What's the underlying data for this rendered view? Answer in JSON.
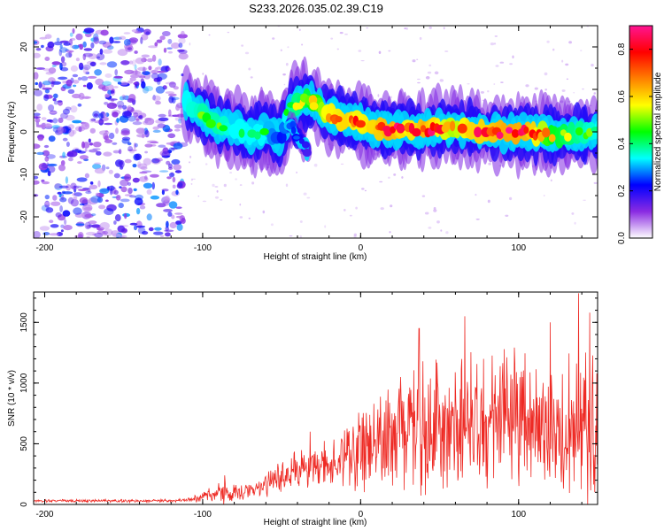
{
  "title": "S233.2026.035.02.39.C19",
  "chart_data": [
    {
      "type": "heatmap",
      "name": "spectrogram",
      "xlabel": "Height of straight line (km)",
      "ylabel": "Frequency (Hz)",
      "xlim": [
        -207,
        150
      ],
      "ylim": [
        -25,
        25
      ],
      "xticks": [
        -200,
        -100,
        0,
        100
      ],
      "yticks": [
        -20,
        -10,
        0,
        10,
        20
      ],
      "colorbar": {
        "label": "Normalized spectral amplitude",
        "range": [
          0.0,
          0.9
        ],
        "ticks": [
          "0.0",
          "0.2",
          "0.4",
          "0.6",
          "0.8"
        ],
        "colormap": [
          "#ffffff",
          "#8a2be2",
          "#0000ff",
          "#00ffff",
          "#00ff00",
          "#ffff00",
          "#ff8000",
          "#ff0000",
          "#ff1493"
        ]
      },
      "noise_region": {
        "x": [
          -207,
          -112
        ],
        "y": [
          -25,
          24
        ],
        "amplitude_range": [
          0.05,
          0.3
        ]
      },
      "signal_ridge": [
        {
          "x": -110,
          "y": 6.5,
          "amp": 0.45
        },
        {
          "x": -100,
          "y": 4.0,
          "amp": 0.5
        },
        {
          "x": -90,
          "y": 1.5,
          "amp": 0.5
        },
        {
          "x": -80,
          "y": 1.0,
          "amp": 0.45
        },
        {
          "x": -70,
          "y": -1.0,
          "amp": 0.45
        },
        {
          "x": -60,
          "y": 0.5,
          "amp": 0.45
        },
        {
          "x": -50,
          "y": -1.5,
          "amp": 0.3
        },
        {
          "x": -45,
          "y": 5.5,
          "amp": 0.5
        },
        {
          "x": -35,
          "y": 7.5,
          "amp": 0.55
        },
        {
          "x": -30,
          "y": 7.0,
          "amp": 0.6
        },
        {
          "x": -20,
          "y": 4.0,
          "amp": 0.75
        },
        {
          "x": -10,
          "y": 2.5,
          "amp": 0.8
        },
        {
          "x": 0,
          "y": 2.0,
          "amp": 0.75
        },
        {
          "x": 10,
          "y": 1.0,
          "amp": 0.8
        },
        {
          "x": 20,
          "y": 0.5,
          "amp": 0.85
        },
        {
          "x": 30,
          "y": 0.8,
          "amp": 0.75
        },
        {
          "x": 40,
          "y": 0.5,
          "amp": 0.85
        },
        {
          "x": 50,
          "y": 0.7,
          "amp": 0.75
        },
        {
          "x": 60,
          "y": 1.0,
          "amp": 0.7
        },
        {
          "x": 70,
          "y": 0.5,
          "amp": 0.8
        },
        {
          "x": 80,
          "y": 0.0,
          "amp": 0.8
        },
        {
          "x": 90,
          "y": -0.2,
          "amp": 0.85
        },
        {
          "x": 100,
          "y": 0.0,
          "amp": 0.85
        },
        {
          "x": 110,
          "y": -0.3,
          "amp": 0.8
        },
        {
          "x": 120,
          "y": -0.8,
          "amp": 0.6
        },
        {
          "x": 130,
          "y": -0.5,
          "amp": 0.55
        },
        {
          "x": 140,
          "y": -0.5,
          "amp": 0.5
        },
        {
          "x": 150,
          "y": 0.0,
          "amp": 0.45
        }
      ],
      "secondary_branch": [
        {
          "x": -45,
          "y": 2.0,
          "amp": 0.35
        },
        {
          "x": -40,
          "y": -1.0,
          "amp": 0.3
        },
        {
          "x": -35,
          "y": -3.5,
          "amp": 0.25
        },
        {
          "x": -33,
          "y": -5.5,
          "amp": 0.2
        }
      ]
    },
    {
      "type": "line",
      "name": "snr",
      "xlabel": "Height of straight line (km)",
      "ylabel": "SNR (10 * v/v)",
      "xlim": [
        -207,
        150
      ],
      "ylim": [
        0,
        1750
      ],
      "xticks": [
        -200,
        -100,
        0,
        100
      ],
      "yticks": [
        0,
        500,
        1000,
        1500
      ],
      "color": "#ee2a24",
      "series": [
        {
          "name": "SNR",
          "envelope_x": [
            -207,
            -120,
            -110,
            -100,
            -90,
            -80,
            -70,
            -60,
            -50,
            -40,
            -30,
            -20,
            -10,
            0,
            10,
            20,
            30,
            40,
            50,
            60,
            70,
            80,
            90,
            100,
            110,
            120,
            130,
            140,
            150
          ],
          "envelope_mean": [
            30,
            30,
            40,
            60,
            100,
            90,
            110,
            170,
            230,
            280,
            310,
            340,
            390,
            460,
            530,
            600,
            630,
            650,
            680,
            650,
            720,
            680,
            690,
            700,
            680,
            640,
            650,
            640,
            600
          ],
          "envelope_spread": [
            10,
            10,
            15,
            40,
            80,
            60,
            60,
            90,
            120,
            150,
            160,
            180,
            220,
            280,
            340,
            420,
            440,
            460,
            480,
            470,
            470,
            460,
            470,
            480,
            460,
            480,
            520,
            560,
            500
          ],
          "peaks": [
            {
              "x": -86,
              "y": 240
            },
            {
              "x": -32,
              "y": 600
            },
            {
              "x": 37,
              "y": 1450
            },
            {
              "x": 66,
              "y": 1550
            },
            {
              "x": 91,
              "y": 1280
            },
            {
              "x": 120,
              "y": 1500
            },
            {
              "x": 138,
              "y": 1740
            },
            {
              "x": 145,
              "y": 1580
            }
          ]
        }
      ]
    }
  ]
}
